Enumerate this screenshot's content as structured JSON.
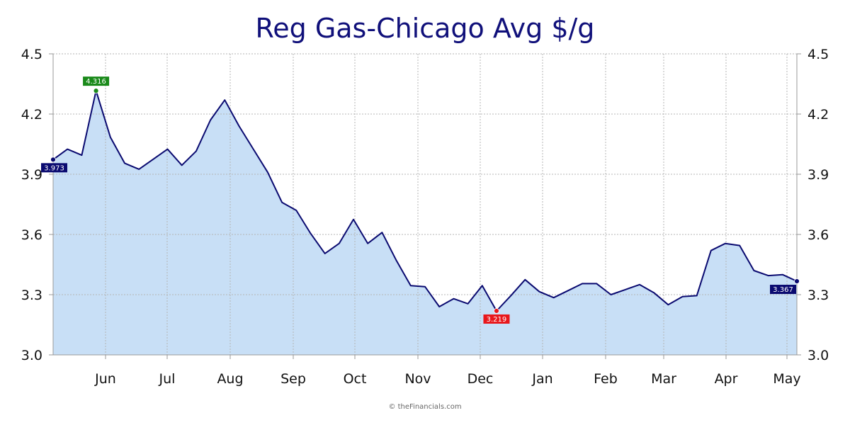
{
  "chart_data": {
    "type": "area",
    "title": "Reg Gas-Chicago Avg $/g",
    "xlabel": "",
    "ylabel": "",
    "ylim": [
      3.0,
      4.5
    ],
    "yticks": [
      "4.5",
      "4.2",
      "3.9",
      "3.6",
      "3.3",
      "3.0"
    ],
    "xticks": [
      "Jun",
      "Jul",
      "Aug",
      "Sep",
      "Oct",
      "Nov",
      "Dec",
      "Jan",
      "Feb",
      "Mar",
      "Apr",
      "May"
    ],
    "grid": true,
    "legend": "none",
    "series": [
      {
        "values": [
          3.973,
          4.025,
          3.995,
          4.316,
          4.085,
          3.955,
          3.925,
          3.975,
          4.025,
          3.945,
          4.015,
          4.17,
          4.27,
          4.14,
          4.025,
          3.91,
          3.76,
          3.72,
          3.605,
          3.505,
          3.555,
          3.675,
          3.555,
          3.61,
          3.47,
          3.345,
          3.34,
          3.24,
          3.28,
          3.255,
          3.345,
          3.219,
          3.295,
          3.375,
          3.315,
          3.285,
          3.32,
          3.355,
          3.355,
          3.3,
          3.325,
          3.35,
          3.31,
          3.25,
          3.29,
          3.295,
          3.52,
          3.555,
          3.545,
          3.42,
          3.395,
          3.4,
          3.367
        ]
      }
    ],
    "annotations": [
      {
        "label": "3.973",
        "kind": "start",
        "color": "#0a0a70"
      },
      {
        "label": "4.316",
        "kind": "max",
        "color": "#1a8a1a"
      },
      {
        "label": "3.219",
        "kind": "min",
        "color": "#e8171b"
      },
      {
        "label": "3.367",
        "kind": "last",
        "color": "#0a0a70"
      }
    ],
    "colors": {
      "line": "#0a0a70",
      "fill": "#c8dff6"
    }
  },
  "credit": "© theFinancials.com"
}
